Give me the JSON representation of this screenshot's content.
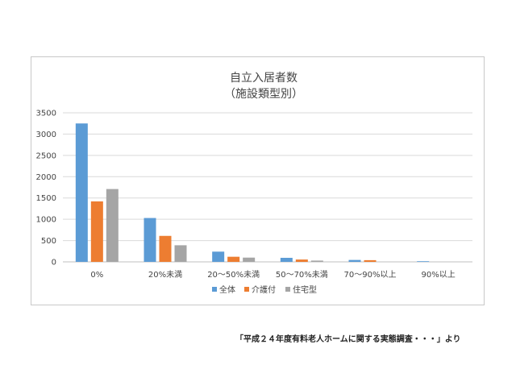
{
  "chart_data": {
    "type": "bar",
    "title": "自立入居者数",
    "subtitle": "（施設類型別）",
    "categories": [
      "0%",
      "20%未満",
      "20～50%未満",
      "50～70%未満",
      "70～90%以上",
      "90%以上"
    ],
    "series": [
      {
        "name": "全体",
        "color": "#5b9bd5",
        "values": [
          3250,
          1030,
          240,
          95,
          45,
          15
        ]
      },
      {
        "name": "介護付",
        "color": "#ed7d31",
        "values": [
          1420,
          610,
          120,
          55,
          40,
          0
        ]
      },
      {
        "name": "住宅型",
        "color": "#a5a5a5",
        "values": [
          1710,
          390,
          100,
          30,
          0,
          0
        ]
      }
    ],
    "ylim": [
      0,
      3500
    ],
    "yticks": [
      0,
      500,
      1000,
      1500,
      2000,
      2500,
      3000,
      3500
    ],
    "grid": true,
    "legend_position": "bottom"
  },
  "source_note": "「平成２４年度有料老人ホームに関する実態調査・・・」より"
}
